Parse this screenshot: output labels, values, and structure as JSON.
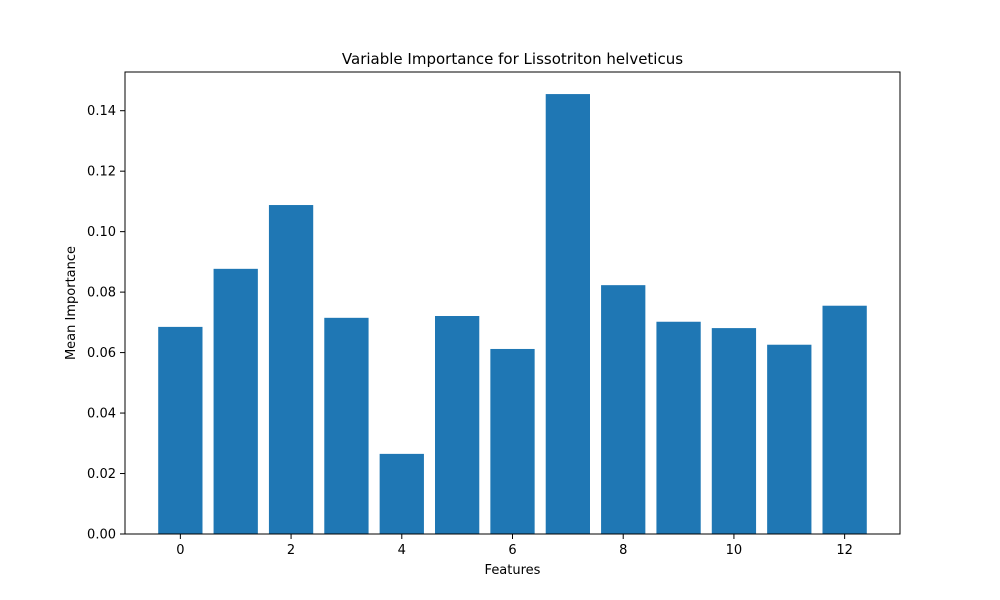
{
  "chart_data": {
    "type": "bar",
    "title": "Variable Importance for Lissotriton helveticus",
    "xlabel": "Features",
    "ylabel": "Mean Importance",
    "categories": [
      0,
      1,
      2,
      3,
      4,
      5,
      6,
      7,
      8,
      9,
      10,
      11,
      12
    ],
    "values": [
      0.0685,
      0.0877,
      0.1088,
      0.0715,
      0.0265,
      0.0721,
      0.0612,
      0.1455,
      0.0823,
      0.0702,
      0.0681,
      0.0626,
      0.0755
    ],
    "xlim": [
      -1.0,
      13.0
    ],
    "ylim": [
      0,
      0.1528
    ],
    "x_ticks": [
      0,
      2,
      4,
      6,
      8,
      10,
      12
    ],
    "y_ticks": [
      "0.00",
      "0.02",
      "0.04",
      "0.06",
      "0.08",
      "0.10",
      "0.12",
      "0.14"
    ],
    "bar_color": "#1f77b4",
    "grid": false,
    "legend": false
  }
}
